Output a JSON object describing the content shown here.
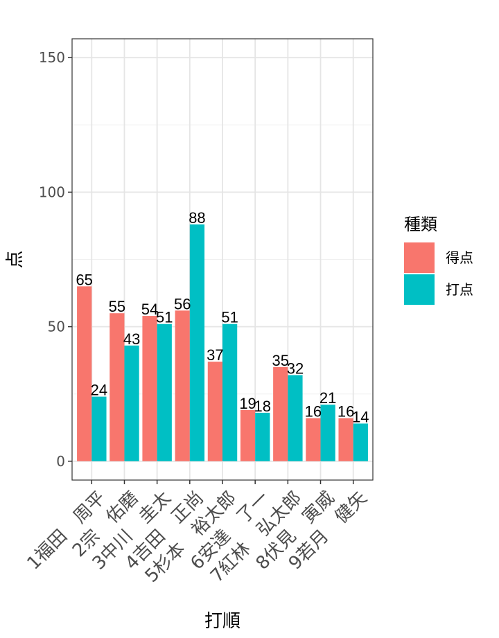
{
  "chart_data": {
    "type": "bar",
    "categories": [
      "1福田　周平",
      "2宗　佑磨",
      "3中川　圭太",
      "4吉田　正尚",
      "5杉本　裕太郎",
      "6安達　了一",
      "7紅林　弘太郎",
      "8伏見　寅威",
      "9若月　健矢"
    ],
    "series": [
      {
        "name": "得点",
        "values": [
          65,
          55,
          54,
          56,
          37,
          19,
          35,
          16,
          16
        ],
        "color": "#F8766D"
      },
      {
        "name": "打点",
        "values": [
          24,
          43,
          51,
          88,
          51,
          18,
          32,
          21,
          14
        ],
        "color": "#00BFC4"
      }
    ],
    "xlabel": "打順",
    "ylabel": "点",
    "ylim": [
      -7,
      157
    ],
    "yticks": [
      0,
      50,
      100,
      150
    ],
    "grid": true,
    "legend": {
      "title": "種類",
      "placement": "right"
    }
  }
}
